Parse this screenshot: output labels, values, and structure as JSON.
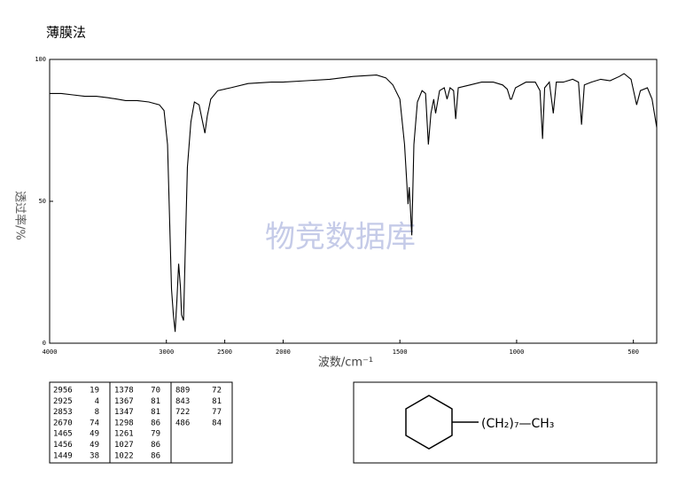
{
  "chart_data": {
    "type": "line",
    "title": "薄膜法",
    "x_label": "波数/cm⁻¹",
    "y_label": "透过率/%",
    "watermark": "物竞数据库",
    "xlim": [
      4000,
      400
    ],
    "xticks": [
      4000,
      3000,
      2500,
      2000,
      1500,
      1000,
      500
    ],
    "x_scale_change": 2000,
    "ylim": [
      0,
      100
    ],
    "yticks": [
      0,
      50,
      100
    ],
    "series": [
      {
        "color": "#000000",
        "x": [
          4000,
          3900,
          3800,
          3700,
          3600,
          3500,
          3420,
          3350,
          3250,
          3150,
          3060,
          3020,
          2990,
          2970,
          2956,
          2940,
          2925,
          2910,
          2895,
          2880,
          2870,
          2853,
          2840,
          2820,
          2790,
          2760,
          2720,
          2690,
          2670,
          2650,
          2620,
          2560,
          2450,
          2300,
          2100,
          2000,
          1900,
          1800,
          1700,
          1600,
          1560,
          1530,
          1500,
          1480,
          1465,
          1460,
          1456,
          1449,
          1440,
          1425,
          1405,
          1390,
          1378,
          1372,
          1367,
          1355,
          1347,
          1330,
          1310,
          1298,
          1285,
          1270,
          1261,
          1250,
          1200,
          1150,
          1100,
          1060,
          1040,
          1027,
          1022,
          1005,
          960,
          920,
          900,
          889,
          880,
          860,
          843,
          830,
          800,
          760,
          735,
          722,
          710,
          680,
          640,
          600,
          560,
          540,
          510,
          486,
          470,
          440,
          420,
          400
        ],
        "values": [
          88,
          88,
          87.5,
          87,
          87,
          86.5,
          86,
          85.5,
          85.5,
          85,
          84,
          82,
          70,
          40,
          19,
          10,
          4,
          15,
          28,
          20,
          10,
          8,
          30,
          62,
          78,
          85,
          84,
          78,
          74,
          80,
          86,
          89,
          90,
          91.5,
          92,
          92,
          92.5,
          93,
          94,
          94.5,
          93.5,
          91,
          86,
          70,
          49,
          55,
          49,
          38,
          70,
          85,
          89,
          88,
          70,
          76,
          81,
          86,
          81,
          89,
          90,
          86,
          90,
          89,
          79,
          90,
          91,
          92,
          92,
          91,
          89.5,
          86,
          86,
          90,
          92,
          92,
          89,
          72,
          90,
          92,
          81,
          92,
          92,
          93,
          92,
          77,
          91,
          92,
          93,
          92.5,
          94,
          95,
          93,
          84,
          89,
          90,
          86,
          76
        ]
      }
    ],
    "peak_table": {
      "columns": [
        [
          [
            "2956",
            "19"
          ],
          [
            "2925",
            "4"
          ],
          [
            "2853",
            "8"
          ],
          [
            "2670",
            "74"
          ],
          [
            "1465",
            "49"
          ],
          [
            "1456",
            "49"
          ],
          [
            "1449",
            "38"
          ]
        ],
        [
          [
            "1378",
            "70"
          ],
          [
            "1367",
            "81"
          ],
          [
            "1347",
            "81"
          ],
          [
            "1298",
            "86"
          ],
          [
            "1261",
            "79"
          ],
          [
            "1027",
            "86"
          ],
          [
            "1022",
            "86"
          ]
        ],
        [
          [
            "889",
            "72"
          ],
          [
            "843",
            "81"
          ],
          [
            "722",
            "77"
          ],
          [
            "486",
            "84"
          ]
        ]
      ]
    },
    "structure": {
      "substituent": "(CH₂)₇—CH₃"
    }
  }
}
